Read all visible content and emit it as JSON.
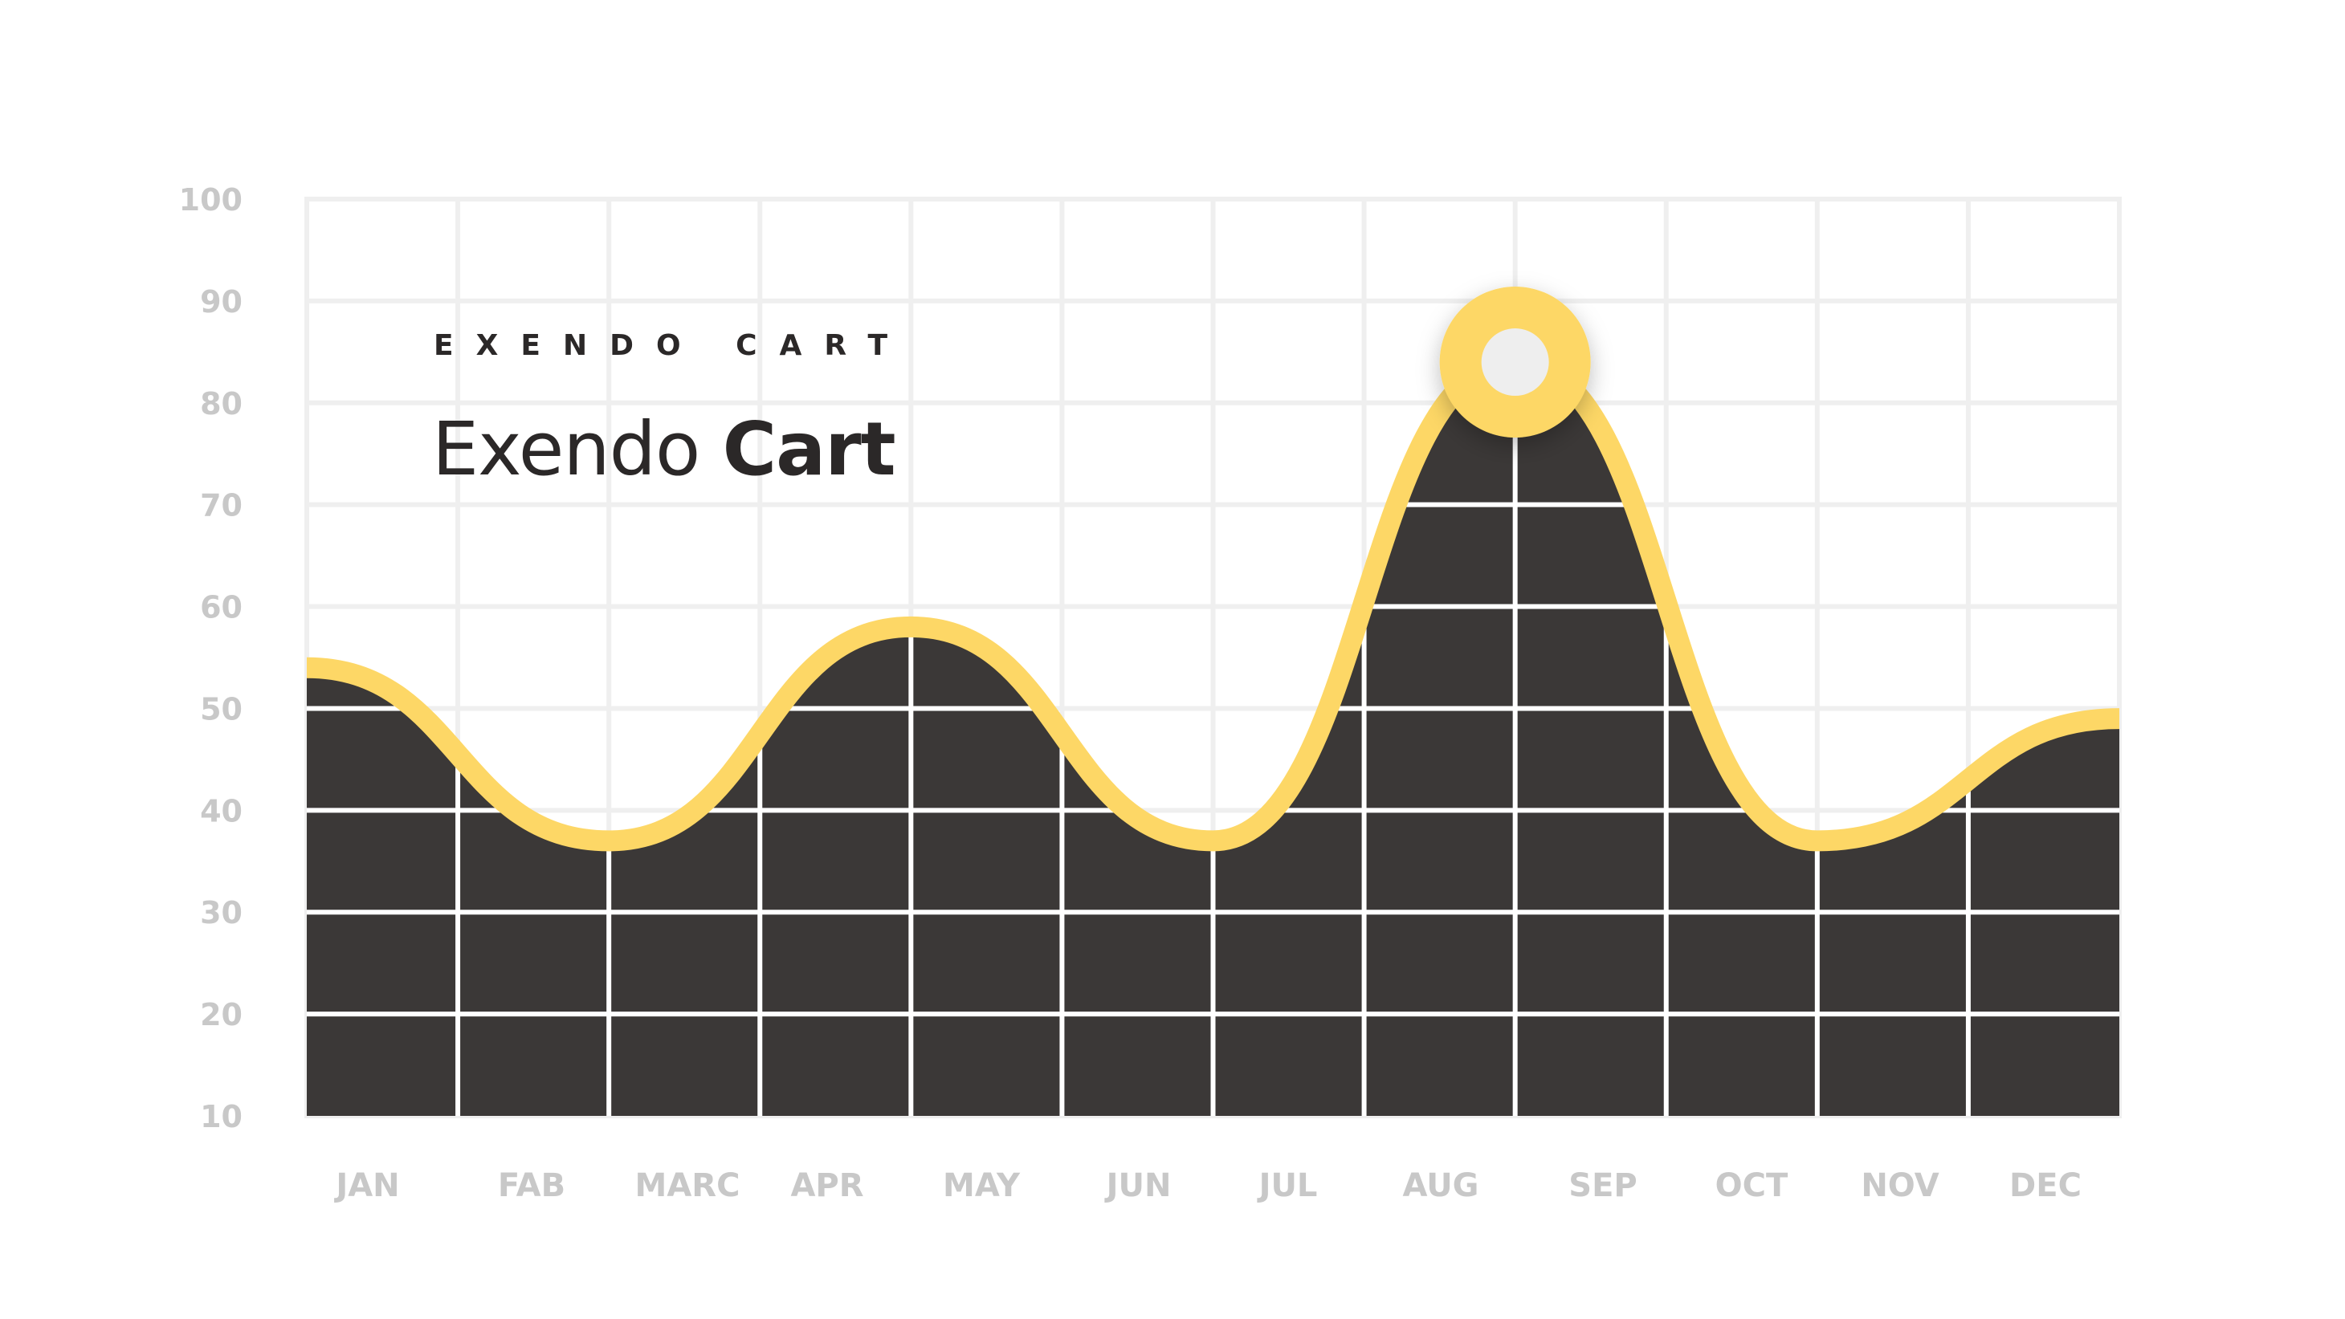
{
  "header": {
    "kicker": "EXENDO CART",
    "title_light": "Exendo",
    "title_bold": "Cart"
  },
  "colors": {
    "area": "#3b3837",
    "line": "#fdd766",
    "grid_light": "#efefef",
    "grid_dark": "#ffffff",
    "marker_inner": "#eeeeee",
    "label": "#c8c8c8"
  },
  "chart_data": {
    "type": "area",
    "title": "",
    "xlabel": "",
    "ylabel": "",
    "ylim": [
      10,
      100
    ],
    "yticks": [
      10,
      20,
      30,
      40,
      50,
      60,
      70,
      80,
      90,
      100
    ],
    "categories": [
      "JAN",
      "FAB",
      "MARC",
      "APR",
      "MAY",
      "JUN",
      "JUL",
      "AUG",
      "SEP",
      "OCT",
      "NOV",
      "DEC"
    ],
    "grid": true,
    "series": [
      {
        "points": [
          {
            "x": 0.0,
            "y": 54
          },
          {
            "x": 2.0,
            "y": 37
          },
          {
            "x": 4.0,
            "y": 58
          },
          {
            "x": 6.0,
            "y": 37
          },
          {
            "x": 8.0,
            "y": 84
          },
          {
            "x": 10.0,
            "y": 37
          },
          {
            "x": 12.0,
            "y": 49
          }
        ]
      }
    ],
    "highlight": {
      "x": 8.0,
      "y": 84
    }
  }
}
